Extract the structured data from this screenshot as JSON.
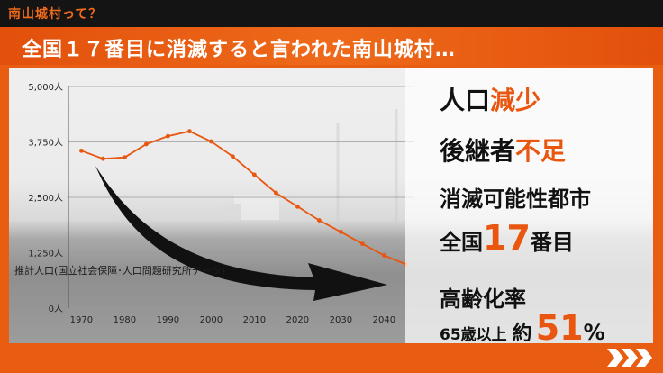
{
  "top_tag": "南山城村って？",
  "headline": "全国１７番目に消滅すると言われた南山城村…",
  "chart_data": {
    "type": "line",
    "x": [
      1970,
      1975,
      1980,
      1985,
      1990,
      1995,
      2000,
      2005,
      2010,
      2015,
      2020,
      2025,
      2030,
      2035,
      2040,
      2045
    ],
    "values": [
      3550,
      3370,
      3400,
      3700,
      3880,
      3990,
      3760,
      3420,
      3010,
      2600,
      2290,
      1980,
      1720,
      1450,
      1190,
      990
    ],
    "yticks": [
      "0人",
      "1,250人",
      "2,500人",
      "3,750人",
      "5,000人"
    ],
    "xticks": [
      "1970",
      "1980",
      "1990",
      "2000",
      "2010",
      "2020",
      "2030",
      "2040"
    ],
    "ylim": [
      0,
      5000
    ],
    "xlim": [
      1967,
      2047
    ],
    "line_color": "#e8560f"
  },
  "source": "推計人口(国立社会保障･人口問題研究所データ)",
  "stats": {
    "pop_a": "人口",
    "pop_b": "減少",
    "succ_a": "後継者",
    "succ_b": "不足",
    "city": "消滅可能性都市",
    "rank_a": "全国",
    "rank_num": "17",
    "rank_b": "番目",
    "aging": "高齢化率",
    "age_label": "65歳以上",
    "approx": "約",
    "pct_num": "51",
    "pct_sign": "%"
  },
  "colors": {
    "accent": "#e8560f",
    "bar": "#141414"
  }
}
